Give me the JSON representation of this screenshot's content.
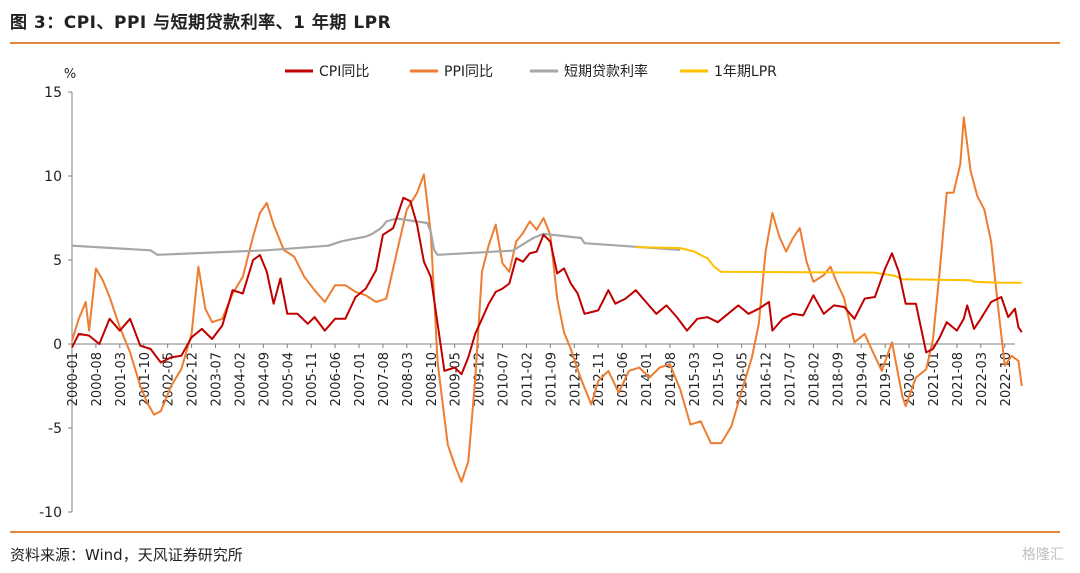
{
  "header": {
    "title": "图 3：CPI、PPI 与短期贷款利率、1 年期 LPR"
  },
  "footer": {
    "source": "资料来源：Wind，天风证券研究所",
    "watermark": "格隆汇"
  },
  "colors": {
    "accent_rule": "#e6863b",
    "cpi": "#c00000",
    "ppi": "#ed7d31",
    "loan_rate": "#a6a6a6",
    "lpr": "#ffc000"
  },
  "chart_data": {
    "type": "line",
    "title": "",
    "ylabel": "%",
    "xlabel": "",
    "ylim": [
      -10,
      15
    ],
    "yticks": [
      15,
      10,
      5,
      0,
      -5,
      -10
    ],
    "xlim": [
      "2000-01",
      "2023-01"
    ],
    "xticks": [
      "2000-01",
      "2000-08",
      "2001-03",
      "2001-10",
      "2002-05",
      "2002-12",
      "2003-07",
      "2004-02",
      "2004-09",
      "2005-04",
      "2005-11",
      "2006-06",
      "2007-01",
      "2007-08",
      "2008-03",
      "2008-10",
      "2009-05",
      "2009-12",
      "2010-07",
      "2011-02",
      "2011-09",
      "2012-04",
      "2012-11",
      "2013-06",
      "2014-01",
      "2014-08",
      "2015-03",
      "2015-10",
      "2016-05",
      "2016-12",
      "2017-07",
      "2018-02",
      "2018-09",
      "2019-04",
      "2019-11",
      "2020-06",
      "2021-01",
      "2021-08",
      "2022-03",
      "2022-10"
    ],
    "grid": false,
    "legend_position": "top",
    "series": [
      {
        "name": "CPI同比",
        "color": "#c00000",
        "points": [
          [
            "2000-01",
            -0.2
          ],
          [
            "2000-03",
            0.6
          ],
          [
            "2000-06",
            0.5
          ],
          [
            "2000-09",
            0.0
          ],
          [
            "2000-12",
            1.5
          ],
          [
            "2001-03",
            0.8
          ],
          [
            "2001-06",
            1.5
          ],
          [
            "2001-09",
            -0.1
          ],
          [
            "2001-12",
            -0.3
          ],
          [
            "2002-03",
            -1.1
          ],
          [
            "2002-06",
            -0.8
          ],
          [
            "2002-09",
            -0.7
          ],
          [
            "2002-12",
            0.4
          ],
          [
            "2003-03",
            0.9
          ],
          [
            "2003-06",
            0.3
          ],
          [
            "2003-09",
            1.1
          ],
          [
            "2003-12",
            3.2
          ],
          [
            "2004-03",
            3.0
          ],
          [
            "2004-06",
            5.0
          ],
          [
            "2004-08",
            5.3
          ],
          [
            "2004-10",
            4.3
          ],
          [
            "2004-12",
            2.4
          ],
          [
            "2005-02",
            3.9
          ],
          [
            "2005-04",
            1.8
          ],
          [
            "2005-07",
            1.8
          ],
          [
            "2005-10",
            1.2
          ],
          [
            "2005-12",
            1.6
          ],
          [
            "2006-03",
            0.8
          ],
          [
            "2006-06",
            1.5
          ],
          [
            "2006-09",
            1.5
          ],
          [
            "2006-12",
            2.8
          ],
          [
            "2007-03",
            3.3
          ],
          [
            "2007-06",
            4.4
          ],
          [
            "2007-08",
            6.5
          ],
          [
            "2007-11",
            6.9
          ],
          [
            "2008-02",
            8.7
          ],
          [
            "2008-04",
            8.5
          ],
          [
            "2008-06",
            7.1
          ],
          [
            "2008-08",
            4.9
          ],
          [
            "2008-10",
            4.0
          ],
          [
            "2008-12",
            1.2
          ],
          [
            "2009-02",
            -1.6
          ],
          [
            "2009-05",
            -1.4
          ],
          [
            "2009-07",
            -1.8
          ],
          [
            "2009-09",
            -0.8
          ],
          [
            "2009-11",
            0.6
          ],
          [
            "2010-01",
            1.5
          ],
          [
            "2010-03",
            2.4
          ],
          [
            "2010-05",
            3.1
          ],
          [
            "2010-07",
            3.3
          ],
          [
            "2010-09",
            3.6
          ],
          [
            "2010-11",
            5.1
          ],
          [
            "2011-01",
            4.9
          ],
          [
            "2011-03",
            5.4
          ],
          [
            "2011-05",
            5.5
          ],
          [
            "2011-07",
            6.5
          ],
          [
            "2011-09",
            6.1
          ],
          [
            "2011-11",
            4.2
          ],
          [
            "2012-01",
            4.5
          ],
          [
            "2012-03",
            3.6
          ],
          [
            "2012-05",
            3.0
          ],
          [
            "2012-07",
            1.8
          ],
          [
            "2012-09",
            1.9
          ],
          [
            "2012-11",
            2.0
          ],
          [
            "2013-02",
            3.2
          ],
          [
            "2013-04",
            2.4
          ],
          [
            "2013-07",
            2.7
          ],
          [
            "2013-10",
            3.2
          ],
          [
            "2014-01",
            2.5
          ],
          [
            "2014-04",
            1.8
          ],
          [
            "2014-07",
            2.3
          ],
          [
            "2014-10",
            1.6
          ],
          [
            "2015-01",
            0.8
          ],
          [
            "2015-04",
            1.5
          ],
          [
            "2015-07",
            1.6
          ],
          [
            "2015-10",
            1.3
          ],
          [
            "2016-01",
            1.8
          ],
          [
            "2016-04",
            2.3
          ],
          [
            "2016-07",
            1.8
          ],
          [
            "2016-10",
            2.1
          ],
          [
            "2017-01",
            2.5
          ],
          [
            "2017-02",
            0.8
          ],
          [
            "2017-05",
            1.5
          ],
          [
            "2017-08",
            1.8
          ],
          [
            "2017-11",
            1.7
          ],
          [
            "2018-02",
            2.9
          ],
          [
            "2018-05",
            1.8
          ],
          [
            "2018-08",
            2.3
          ],
          [
            "2018-11",
            2.2
          ],
          [
            "2019-02",
            1.5
          ],
          [
            "2019-05",
            2.7
          ],
          [
            "2019-08",
            2.8
          ],
          [
            "2019-11",
            4.5
          ],
          [
            "2020-01",
            5.4
          ],
          [
            "2020-03",
            4.3
          ],
          [
            "2020-05",
            2.4
          ],
          [
            "2020-08",
            2.4
          ],
          [
            "2020-11",
            -0.5
          ],
          [
            "2021-01",
            -0.3
          ],
          [
            "2021-03",
            0.4
          ],
          [
            "2021-05",
            1.3
          ],
          [
            "2021-08",
            0.8
          ],
          [
            "2021-10",
            1.5
          ],
          [
            "2021-11",
            2.3
          ],
          [
            "2022-01",
            0.9
          ],
          [
            "2022-03",
            1.5
          ],
          [
            "2022-06",
            2.5
          ],
          [
            "2022-09",
            2.8
          ],
          [
            "2022-11",
            1.6
          ],
          [
            "2023-01",
            2.1
          ],
          [
            "2023-02",
            1.0
          ],
          [
            "2023-03",
            0.7
          ]
        ]
      },
      {
        "name": "PPI同比",
        "color": "#ed7d31",
        "points": [
          [
            "2000-01",
            0.2
          ],
          [
            "2000-03",
            1.5
          ],
          [
            "2000-05",
            2.5
          ],
          [
            "2000-06",
            0.8
          ],
          [
            "2000-08",
            4.5
          ],
          [
            "2000-10",
            3.8
          ],
          [
            "2000-12",
            2.8
          ],
          [
            "2001-03",
            1.0
          ],
          [
            "2001-06",
            -0.5
          ],
          [
            "2001-09",
            -2.5
          ],
          [
            "2001-11",
            -3.5
          ],
          [
            "2002-01",
            -4.2
          ],
          [
            "2002-03",
            -4.0
          ],
          [
            "2002-06",
            -2.5
          ],
          [
            "2002-09",
            -1.5
          ],
          [
            "2002-12",
            0.6
          ],
          [
            "2003-02",
            4.6
          ],
          [
            "2003-04",
            2.1
          ],
          [
            "2003-06",
            1.3
          ],
          [
            "2003-09",
            1.5
          ],
          [
            "2003-12",
            3.0
          ],
          [
            "2004-03",
            4.0
          ],
          [
            "2004-06",
            6.4
          ],
          [
            "2004-08",
            7.8
          ],
          [
            "2004-10",
            8.4
          ],
          [
            "2004-12",
            7.1
          ],
          [
            "2005-03",
            5.6
          ],
          [
            "2005-06",
            5.2
          ],
          [
            "2005-09",
            4.0
          ],
          [
            "2005-12",
            3.2
          ],
          [
            "2006-03",
            2.5
          ],
          [
            "2006-06",
            3.5
          ],
          [
            "2006-09",
            3.5
          ],
          [
            "2006-12",
            3.1
          ],
          [
            "2007-03",
            2.9
          ],
          [
            "2007-06",
            2.5
          ],
          [
            "2007-09",
            2.7
          ],
          [
            "2007-12",
            5.4
          ],
          [
            "2008-03",
            8.0
          ],
          [
            "2008-06",
            9.0
          ],
          [
            "2008-08",
            10.1
          ],
          [
            "2008-10",
            6.6
          ],
          [
            "2008-12",
            -1.1
          ],
          [
            "2009-03",
            -6.0
          ],
          [
            "2009-05",
            -7.2
          ],
          [
            "2009-07",
            -8.2
          ],
          [
            "2009-09",
            -7.0
          ],
          [
            "2009-11",
            -2.1
          ],
          [
            "2010-01",
            4.3
          ],
          [
            "2010-03",
            5.9
          ],
          [
            "2010-05",
            7.1
          ],
          [
            "2010-07",
            4.8
          ],
          [
            "2010-09",
            4.3
          ],
          [
            "2010-11",
            6.1
          ],
          [
            "2011-01",
            6.6
          ],
          [
            "2011-03",
            7.3
          ],
          [
            "2011-05",
            6.8
          ],
          [
            "2011-07",
            7.5
          ],
          [
            "2011-09",
            6.5
          ],
          [
            "2011-11",
            2.7
          ],
          [
            "2012-01",
            0.7
          ],
          [
            "2012-03",
            -0.3
          ],
          [
            "2012-06",
            -2.1
          ],
          [
            "2012-09",
            -3.6
          ],
          [
            "2012-11",
            -2.2
          ],
          [
            "2013-02",
            -1.6
          ],
          [
            "2013-05",
            -2.9
          ],
          [
            "2013-08",
            -1.6
          ],
          [
            "2013-11",
            -1.4
          ],
          [
            "2014-02",
            -2.0
          ],
          [
            "2014-05",
            -1.4
          ],
          [
            "2014-08",
            -1.2
          ],
          [
            "2014-11",
            -2.7
          ],
          [
            "2015-02",
            -4.8
          ],
          [
            "2015-05",
            -4.6
          ],
          [
            "2015-08",
            -5.9
          ],
          [
            "2015-11",
            -5.9
          ],
          [
            "2016-02",
            -4.9
          ],
          [
            "2016-05",
            -2.8
          ],
          [
            "2016-08",
            -0.8
          ],
          [
            "2016-10",
            1.2
          ],
          [
            "2016-12",
            5.5
          ],
          [
            "2017-02",
            7.8
          ],
          [
            "2017-04",
            6.4
          ],
          [
            "2017-06",
            5.5
          ],
          [
            "2017-08",
            6.3
          ],
          [
            "2017-10",
            6.9
          ],
          [
            "2017-12",
            4.9
          ],
          [
            "2018-02",
            3.7
          ],
          [
            "2018-05",
            4.1
          ],
          [
            "2018-07",
            4.6
          ],
          [
            "2018-09",
            3.6
          ],
          [
            "2018-11",
            2.7
          ],
          [
            "2019-02",
            0.1
          ],
          [
            "2019-05",
            0.6
          ],
          [
            "2019-07",
            -0.3
          ],
          [
            "2019-10",
            -1.6
          ],
          [
            "2020-01",
            0.1
          ],
          [
            "2020-04",
            -3.1
          ],
          [
            "2020-05",
            -3.7
          ],
          [
            "2020-08",
            -2.0
          ],
          [
            "2020-11",
            -1.5
          ],
          [
            "2021-01",
            0.3
          ],
          [
            "2021-03",
            4.4
          ],
          [
            "2021-05",
            9.0
          ],
          [
            "2021-07",
            9.0
          ],
          [
            "2021-09",
            10.7
          ],
          [
            "2021-10",
            13.5
          ],
          [
            "2021-12",
            10.3
          ],
          [
            "2022-02",
            8.8
          ],
          [
            "2022-04",
            8.0
          ],
          [
            "2022-06",
            6.1
          ],
          [
            "2022-08",
            2.3
          ],
          [
            "2022-10",
            -1.3
          ],
          [
            "2022-12",
            -0.7
          ],
          [
            "2023-02",
            -1.0
          ],
          [
            "2023-03",
            -2.5
          ]
        ]
      },
      {
        "name": "短期贷款利率",
        "color": "#a6a6a6",
        "points": [
          [
            "2000-01",
            5.85
          ],
          [
            "2001-12",
            5.58
          ],
          [
            "2002-02",
            5.31
          ],
          [
            "2004-10",
            5.58
          ],
          [
            "2006-04",
            5.85
          ],
          [
            "2006-08",
            6.12
          ],
          [
            "2007-03",
            6.39
          ],
          [
            "2007-05",
            6.57
          ],
          [
            "2007-07",
            6.84
          ],
          [
            "2007-08",
            7.02
          ],
          [
            "2007-09",
            7.29
          ],
          [
            "2007-12",
            7.47
          ],
          [
            "2008-09",
            7.2
          ],
          [
            "2008-10",
            6.66
          ],
          [
            "2008-11",
            5.58
          ],
          [
            "2008-12",
            5.31
          ],
          [
            "2010-10",
            5.56
          ],
          [
            "2010-12",
            5.81
          ],
          [
            "2011-02",
            6.06
          ],
          [
            "2011-04",
            6.31
          ],
          [
            "2011-07",
            6.56
          ],
          [
            "2012-06",
            6.31
          ],
          [
            "2012-07",
            6.0
          ],
          [
            "2014-11",
            5.6
          ]
        ]
      },
      {
        "name": "1年期LPR",
        "color": "#ffc000",
        "points": [
          [
            "2013-10",
            5.77
          ],
          [
            "2014-11",
            5.71
          ],
          [
            "2015-03",
            5.51
          ],
          [
            "2015-05",
            5.3
          ],
          [
            "2015-07",
            5.1
          ],
          [
            "2015-09",
            4.59
          ],
          [
            "2015-11",
            4.3
          ],
          [
            "2019-08",
            4.25
          ],
          [
            "2019-09",
            4.2
          ],
          [
            "2019-11",
            4.15
          ],
          [
            "2020-02",
            4.05
          ],
          [
            "2020-04",
            3.85
          ],
          [
            "2021-12",
            3.8
          ],
          [
            "2022-01",
            3.7
          ],
          [
            "2022-08",
            3.65
          ],
          [
            "2023-03",
            3.65
          ]
        ]
      }
    ]
  }
}
